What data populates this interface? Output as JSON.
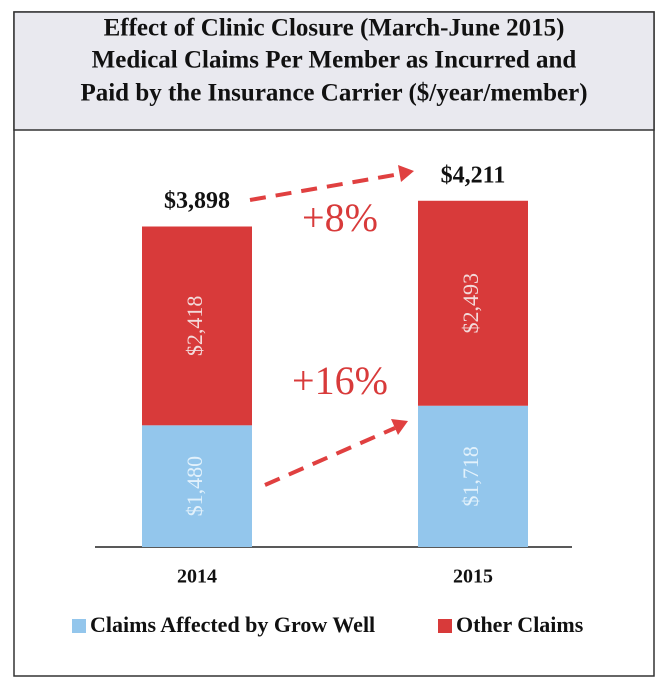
{
  "chart_data": {
    "type": "stacked_bar",
    "title": [
      "Effect of Clinic Closure (March-June 2015)",
      "Medical Claims Per Member as Incurred and",
      "Paid by the Insurance Carrier ($/year/member)"
    ],
    "categories": [
      "2014",
      "2015"
    ],
    "series": [
      {
        "name": "Claims Affected by Grow Well",
        "color": "#93c6ec",
        "values": [
          1480,
          1718
        ],
        "value_labels": [
          "$1,480",
          "$1,718"
        ]
      },
      {
        "name": "Other Claims",
        "color": "#d83a3a",
        "values": [
          2418,
          2493
        ],
        "value_labels": [
          "$2,418",
          "$2,493"
        ]
      }
    ],
    "totals": {
      "values": [
        3898,
        4211
      ],
      "value_labels": [
        "$3,898",
        "$4,211"
      ]
    },
    "annotations": [
      "+8%",
      "+16%"
    ],
    "ylim": [
      0,
      4500
    ]
  }
}
